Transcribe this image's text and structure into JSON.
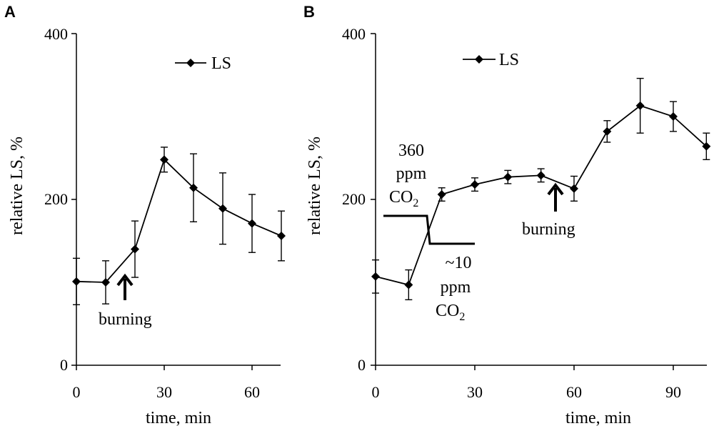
{
  "chart_data": [
    {
      "panel": "A",
      "type": "line",
      "xlabel": "time, min",
      "ylabel": "relative LS, %",
      "xlim": [
        0,
        70
      ],
      "ylim": [
        0,
        400
      ],
      "xticks": [
        "0",
        "30",
        "60"
      ],
      "yticks": [
        "0",
        "200",
        "400"
      ],
      "legend": "LS",
      "series": [
        {
          "name": "LS",
          "x": [
            0,
            10,
            20,
            30,
            40,
            50,
            60,
            70
          ],
          "y": [
            101,
            100,
            140,
            248,
            214,
            189,
            171,
            156
          ],
          "err": [
            28,
            26,
            34,
            15,
            41,
            43,
            35,
            30
          ]
        }
      ],
      "annotations": {
        "burning": "burning"
      }
    },
    {
      "panel": "B",
      "type": "line",
      "xlabel": "time, min",
      "ylabel": "relative LS, %",
      "xlim": [
        0,
        100
      ],
      "ylim": [
        0,
        400
      ],
      "xticks": [
        "0",
        "30",
        "60",
        "90"
      ],
      "yticks": [
        "0",
        "200",
        "400"
      ],
      "legend": "LS",
      "series": [
        {
          "name": "LS",
          "x": [
            0,
            10,
            20,
            30,
            40,
            50,
            60,
            70,
            80,
            90,
            100
          ],
          "y": [
            107,
            97,
            206,
            218,
            227,
            229,
            213,
            282,
            313,
            300,
            264
          ],
          "err": [
            20,
            18,
            8,
            8,
            8,
            8,
            15,
            13,
            33,
            18,
            16
          ]
        }
      ],
      "annotations": {
        "co2_high_value": "360",
        "co2_high_unit": "ppm",
        "co2_high_gas": "CO",
        "co2_low_value": "~10",
        "co2_low_unit": "ppm",
        "co2_low_gas": "CO",
        "co2_subscript": "2",
        "burning": "burning"
      }
    }
  ]
}
